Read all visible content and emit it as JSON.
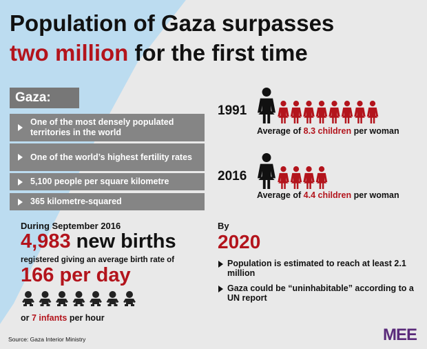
{
  "title": {
    "line1": "Population of Gaza surpasses",
    "line2_highlight": "two million",
    "line2_rest": "for the first time"
  },
  "facts": {
    "heading": "Gaza:",
    "items": [
      "One of the most densely populated territories in the world",
      "One of the world’s highest fertility rates",
      "5,100 people per square kilometre",
      "365 kilometre-squared"
    ]
  },
  "fertility": [
    {
      "year": "1991",
      "prefix": "Average of",
      "highlight": "8.3 children",
      "suffix": "per woman"
    },
    {
      "year": "2016",
      "prefix": "Average of",
      "highlight": "4.4 children",
      "suffix": "per woman"
    }
  ],
  "births": {
    "period": "During September 2016",
    "count": "4,983",
    "count_label": "new births",
    "description": "registered giving an average birth rate of",
    "rate": "166 per day",
    "hourly_prefix": "or",
    "hourly_highlight": "7 infants",
    "hourly_suffix": "per hour"
  },
  "outlook": {
    "label": "By",
    "year": "2020",
    "items": [
      "Population is estimated to reach at least 2.1 million",
      "Gaza could be “uninhabitable” according to a UN report"
    ]
  },
  "source": "Source: Gaza Interior Ministry",
  "logo": "MEE"
}
